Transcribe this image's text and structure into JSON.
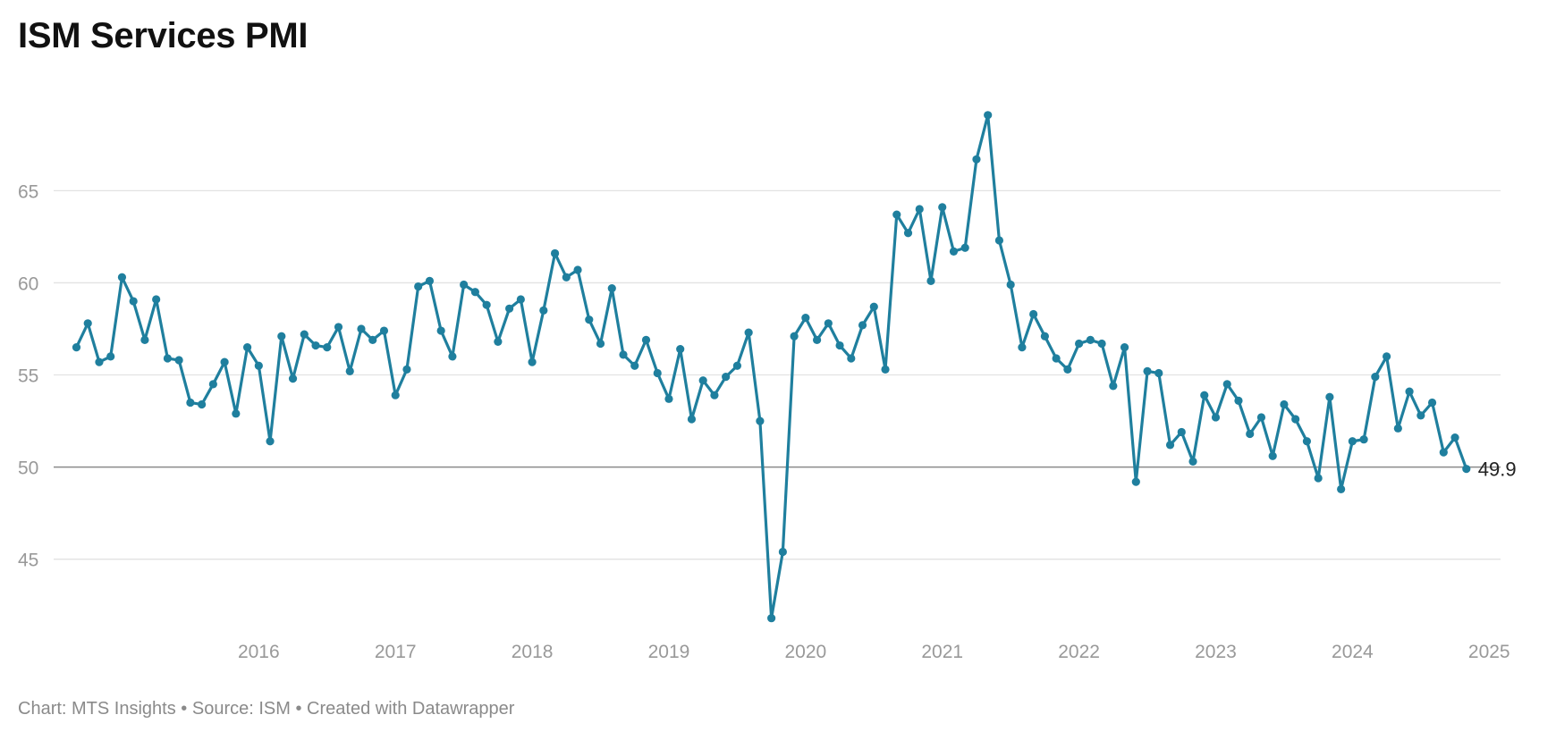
{
  "chart_title": "ISM Services PMI",
  "footer": {
    "credit": "Chart: MTS Insights",
    "separator_1": "•",
    "source": "Source: ISM",
    "separator_2": "•",
    "tool": "Created with Datawrapper"
  },
  "chart_data": {
    "type": "line",
    "title": "ISM Services PMI",
    "xlabel": "",
    "ylabel": "",
    "series": [
      {
        "color": "#1f7f9e",
        "x": [
          "2015-03",
          "2015-04",
          "2015-05",
          "2015-06",
          "2015-07",
          "2015-08",
          "2015-09",
          "2015-10",
          "2015-11",
          "2015-12",
          "2016-01",
          "2016-02",
          "2016-03",
          "2016-04",
          "2016-05",
          "2016-06",
          "2016-07",
          "2016-08",
          "2016-09",
          "2016-10",
          "2016-11",
          "2016-12",
          "2017-01",
          "2017-02",
          "2017-03",
          "2017-04",
          "2017-05",
          "2017-06",
          "2017-07",
          "2017-08",
          "2017-09",
          "2017-10",
          "2017-11",
          "2017-12",
          "2018-01",
          "2018-02",
          "2018-03",
          "2018-04",
          "2018-05",
          "2018-06",
          "2018-07",
          "2018-08",
          "2018-09",
          "2018-10",
          "2018-11",
          "2018-12",
          "2019-01",
          "2019-02",
          "2019-03",
          "2019-04",
          "2019-05",
          "2019-06",
          "2019-07",
          "2019-08",
          "2019-09",
          "2019-10",
          "2019-11",
          "2019-12",
          "2020-01",
          "2020-02",
          "2020-03",
          "2020-04",
          "2020-05",
          "2020-06",
          "2020-07",
          "2020-08",
          "2020-09",
          "2020-10",
          "2020-11",
          "2020-12",
          "2021-01",
          "2021-02",
          "2021-03",
          "2021-04",
          "2021-05",
          "2021-06",
          "2021-07",
          "2021-08",
          "2021-09",
          "2021-10",
          "2021-11",
          "2021-12",
          "2022-01",
          "2022-02",
          "2022-03",
          "2022-04",
          "2022-05",
          "2022-06",
          "2022-07",
          "2022-08",
          "2022-09",
          "2022-10",
          "2022-11",
          "2022-12",
          "2023-01",
          "2023-02",
          "2023-03",
          "2023-04",
          "2023-05",
          "2023-06",
          "2023-07",
          "2023-08",
          "2023-09",
          "2023-10",
          "2023-11",
          "2023-12",
          "2024-01",
          "2024-02",
          "2024-03",
          "2024-04",
          "2024-05",
          "2024-06",
          "2024-07",
          "2024-08",
          "2024-09",
          "2024-10",
          "2024-11",
          "2024-12",
          "2025-01",
          "2025-02",
          "2025-03",
          "2025-04",
          "2025-05"
        ],
        "values": [
          56.5,
          57.8,
          55.7,
          56.0,
          60.3,
          59.0,
          56.9,
          59.1,
          55.9,
          55.8,
          53.5,
          53.4,
          54.5,
          55.7,
          52.9,
          56.5,
          55.5,
          51.4,
          57.1,
          54.8,
          57.2,
          56.6,
          56.5,
          57.6,
          55.2,
          57.5,
          56.9,
          57.4,
          53.9,
          55.3,
          59.8,
          60.1,
          57.4,
          56.0,
          59.9,
          59.5,
          58.8,
          56.8,
          58.6,
          59.1,
          55.7,
          58.5,
          61.6,
          60.3,
          60.7,
          58.0,
          56.7,
          59.7,
          56.1,
          55.5,
          56.9,
          55.1,
          53.7,
          56.4,
          52.6,
          54.7,
          53.9,
          54.9,
          55.5,
          57.3,
          52.5,
          41.8,
          45.4,
          57.1,
          58.1,
          56.9,
          57.8,
          56.6,
          55.9,
          57.7,
          58.7,
          55.3,
          63.7,
          62.7,
          64.0,
          60.1,
          64.1,
          61.7,
          61.9,
          66.7,
          69.1,
          62.3,
          59.9,
          56.5,
          58.3,
          57.1,
          55.9,
          55.3,
          56.7,
          56.9,
          56.7,
          54.4,
          56.5,
          49.2,
          55.2,
          55.1,
          51.2,
          51.9,
          50.3,
          53.9,
          52.7,
          54.5,
          53.6,
          51.8,
          52.7,
          50.6,
          53.4,
          52.6,
          51.4,
          49.4,
          53.8,
          48.8,
          51.4,
          51.5,
          54.9,
          56.0,
          52.1,
          54.1,
          52.8,
          53.5,
          50.8,
          51.6,
          49.9
        ],
        "last_value_label": "49.9"
      }
    ],
    "y_ticks": [
      45,
      50,
      55,
      60,
      65
    ],
    "y_tick_labels": [
      "45",
      "50",
      "55",
      "60",
      "65"
    ],
    "ylim": [
      41.3,
      70.4
    ],
    "x_ticks": [
      "2016",
      "2017",
      "2018",
      "2019",
      "2020",
      "2021",
      "2022",
      "2023",
      "2024",
      "2025"
    ],
    "xlim": [
      "2015-01",
      "2025-08"
    ],
    "reference_line": 50,
    "grid": true,
    "legend": "none"
  }
}
